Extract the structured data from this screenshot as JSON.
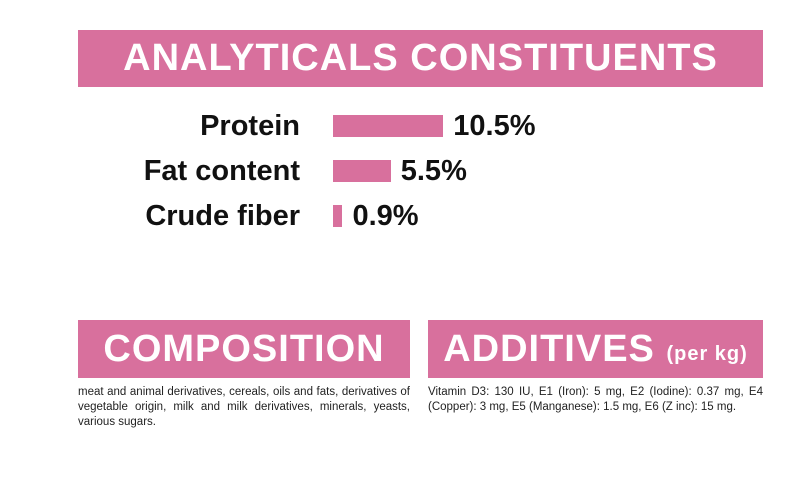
{
  "chart_data": {
    "type": "bar",
    "orientation": "horizontal",
    "title": "ANALYTICALS CONSTITUENTS",
    "categories": [
      "Protein",
      "Fat content",
      "Crude fiber"
    ],
    "values": [
      10.5,
      5.5,
      0.9
    ],
    "value_labels": [
      "10.5%",
      "5.5%",
      "0.9%"
    ],
    "color": "#d8709d"
  },
  "composition": {
    "title": "COMPOSITION",
    "text": "meat and animal derivatives, cereals, oils and fats, derivatives of vegetable origin, milk and milk derivatives, minerals, yeasts, various sugars."
  },
  "additives": {
    "title": "ADDITIVES",
    "subtitle": "(per kg)",
    "text": "Vitamin D3: 130 IU, E1 (Iron): 5 mg, E2 (Iodine): 0.37 mg, E4 (Copper): 3 mg, E5 (Manganese): 1.5 mg, E6 (Z inc): 15 mg."
  }
}
